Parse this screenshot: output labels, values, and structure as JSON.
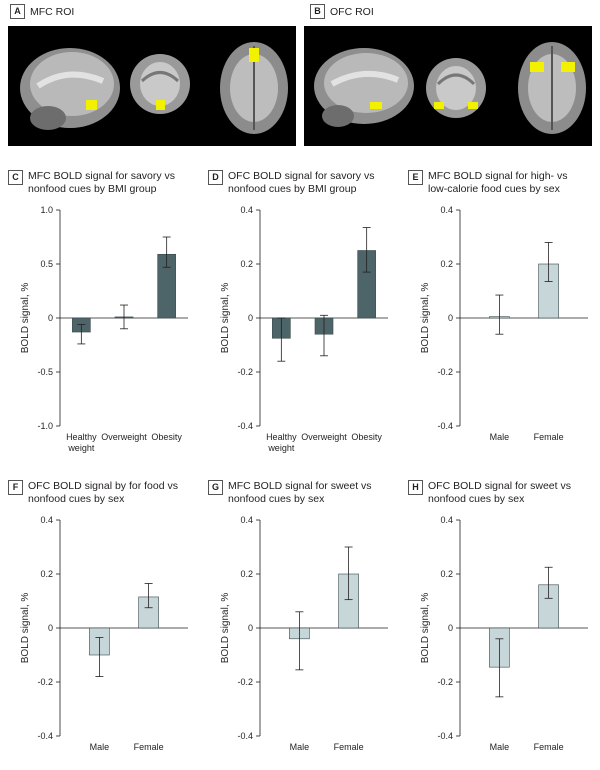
{
  "brain_panels": [
    {
      "letter": "A",
      "title": "MFC ROI"
    },
    {
      "letter": "B",
      "title": "OFC ROI"
    }
  ],
  "colors": {
    "dark_bar": "#4d6468",
    "light_bar": "#c7d6d8",
    "roi": "#f2f200",
    "axis": "#231f20"
  },
  "chart_data": [
    {
      "letter": "C",
      "type": "bar",
      "title": "MFC BOLD signal for savory vs nonfood cues by BMI group",
      "title_lines": [
        "MFC BOLD signal for savory vs",
        "nonfood cues by BMI group"
      ],
      "ylabel": "BOLD signal, %",
      "ylim": [
        -1.0,
        1.0
      ],
      "ticks": [
        "1.0",
        "0.5",
        "0",
        "-0.5",
        "-1.0"
      ],
      "tick_values": [
        1.0,
        0.5,
        0,
        -0.5,
        -1.0
      ],
      "categories": [
        [
          "Healthy",
          "weight"
        ],
        [
          "Overweight"
        ],
        [
          "Obesity"
        ]
      ],
      "values": [
        -0.13,
        0.01,
        0.59
      ],
      "err_low": [
        -0.24,
        -0.1,
        0.47
      ],
      "err_high": [
        -0.06,
        0.12,
        0.75
      ],
      "color": "dark"
    },
    {
      "letter": "D",
      "type": "bar",
      "title": "OFC BOLD signal for savory vs nonfood cues by BMI group",
      "title_lines": [
        "OFC BOLD signal for savory vs",
        "nonfood cues by BMI group"
      ],
      "ylabel": "BOLD signal, %",
      "ylim": [
        -0.4,
        0.4
      ],
      "ticks": [
        "0.4",
        "0.2",
        "0",
        "-0.2",
        "-0.4"
      ],
      "tick_values": [
        0.4,
        0.2,
        0,
        -0.2,
        -0.4
      ],
      "categories": [
        [
          "Healthy",
          "weight"
        ],
        [
          "Overweight"
        ],
        [
          "Obesity"
        ]
      ],
      "values": [
        -0.075,
        -0.06,
        0.25
      ],
      "err_low": [
        -0.16,
        -0.14,
        0.17
      ],
      "err_high": [
        0.0,
        0.01,
        0.335
      ],
      "color": "dark"
    },
    {
      "letter": "E",
      "type": "bar",
      "title": "MFC BOLD signal for high- vs low-calorie food cues by sex",
      "title_lines": [
        "MFC BOLD signal for high- vs",
        "low-calorie food cues by sex"
      ],
      "ylabel": "BOLD signal, %",
      "ylim": [
        -0.4,
        0.4
      ],
      "ticks": [
        "0.4",
        "0.2",
        "0",
        "-0.2",
        "-0.4"
      ],
      "tick_values": [
        0.4,
        0.2,
        0,
        -0.2,
        -0.4
      ],
      "categories": [
        [
          "Male"
        ],
        [
          "Female"
        ]
      ],
      "values": [
        0.005,
        0.2
      ],
      "err_low": [
        -0.06,
        0.135
      ],
      "err_high": [
        0.085,
        0.28
      ],
      "color": "light"
    },
    {
      "letter": "F",
      "type": "bar",
      "title": "OFC BOLD signal by for food vs nonfood cues by sex",
      "title_lines": [
        "OFC BOLD signal by for food vs",
        "nonfood cues by sex"
      ],
      "ylabel": "BOLD signal, %",
      "ylim": [
        -0.4,
        0.4
      ],
      "ticks": [
        "0.4",
        "0.2",
        "0",
        "-0.2",
        "-0.4"
      ],
      "tick_values": [
        0.4,
        0.2,
        0,
        -0.2,
        -0.4
      ],
      "categories": [
        [
          "Male"
        ],
        [
          "Female"
        ]
      ],
      "values": [
        -0.1,
        0.115
      ],
      "err_low": [
        -0.18,
        0.075
      ],
      "err_high": [
        -0.035,
        0.165
      ],
      "color": "light"
    },
    {
      "letter": "G",
      "type": "bar",
      "title": "MFC BOLD signal for sweet vs nonfood cues by sex",
      "title_lines": [
        "MFC BOLD signal for sweet vs",
        "nonfood cues by sex"
      ],
      "ylabel": "BOLD signal, %",
      "ylim": [
        -0.4,
        0.4
      ],
      "ticks": [
        "0.4",
        "0.2",
        "0",
        "-0.2",
        "-0.4"
      ],
      "tick_values": [
        0.4,
        0.2,
        0,
        -0.2,
        -0.4
      ],
      "categories": [
        [
          "Male"
        ],
        [
          "Female"
        ]
      ],
      "values": [
        -0.04,
        0.2
      ],
      "err_low": [
        -0.155,
        0.105
      ],
      "err_high": [
        0.06,
        0.3
      ],
      "color": "light"
    },
    {
      "letter": "H",
      "type": "bar",
      "title": "OFC BOLD signal for sweet vs nonfood cues by sex",
      "title_lines": [
        "OFC BOLD signal for sweet vs",
        "nonfood cues by sex"
      ],
      "ylabel": "BOLD signal, %",
      "ylim": [
        -0.4,
        0.4
      ],
      "ticks": [
        "0.4",
        "0.2",
        "0",
        "-0.2",
        "-0.4"
      ],
      "tick_values": [
        0.4,
        0.2,
        0,
        -0.2,
        -0.4
      ],
      "categories": [
        [
          "Male"
        ],
        [
          "Female"
        ]
      ],
      "values": [
        -0.145,
        0.16
      ],
      "err_low": [
        -0.255,
        0.11
      ],
      "err_high": [
        -0.04,
        0.225
      ],
      "color": "light"
    }
  ]
}
